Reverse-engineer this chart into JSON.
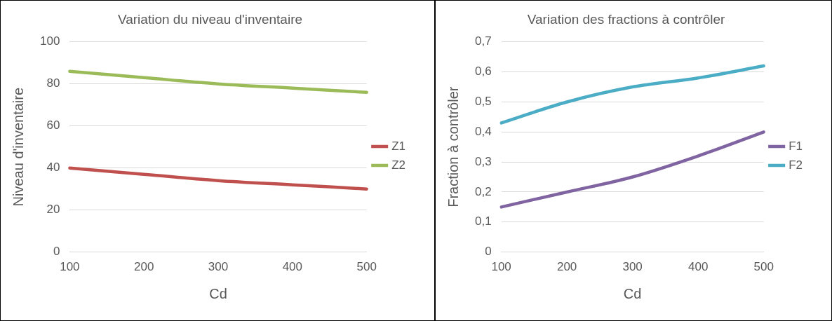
{
  "chart_data": [
    {
      "type": "line",
      "title": "Variation du niveau d'inventaire",
      "xlabel": "Cd",
      "ylabel": "Niveau d'inventaire",
      "categories": [
        "100",
        "200",
        "300",
        "400",
        "500"
      ],
      "series": [
        {
          "name": "Z1",
          "color": "#c0504d",
          "values": [
            40,
            37,
            34,
            32,
            30
          ]
        },
        {
          "name": "Z2",
          "color": "#9bbb59",
          "values": [
            86,
            83,
            80,
            78,
            76
          ]
        }
      ],
      "ylim": [
        0,
        100
      ],
      "yticks": [
        0,
        20,
        40,
        60,
        80,
        100
      ],
      "grid": "y",
      "legend": "right",
      "marker": "none",
      "line_style": "solid"
    },
    {
      "type": "line",
      "title": "Variation des fractions à contrôler",
      "xlabel": "Cd",
      "ylabel": "Fraction à contrôler",
      "categories": [
        "100",
        "200",
        "300",
        "400",
        "500"
      ],
      "series": [
        {
          "name": "F1",
          "color": "#8064a2",
          "values": [
            0.15,
            0.2,
            0.25,
            0.32,
            0.4
          ]
        },
        {
          "name": "F2",
          "color": "#4bacc6",
          "values": [
            0.43,
            0.5,
            0.55,
            0.58,
            0.62
          ]
        }
      ],
      "ylim": [
        0,
        0.7
      ],
      "yticks": [
        0,
        {
          "value": 0.1,
          "label": "0,1"
        },
        {
          "value": 0.2,
          "label": "0,2"
        },
        {
          "value": 0.3,
          "label": "0,3"
        },
        {
          "value": 0.4,
          "label": "0,4"
        },
        {
          "value": 0.5,
          "label": "0,5"
        },
        {
          "value": 0.6,
          "label": "0,6"
        },
        {
          "value": 0.7,
          "label": "0,7"
        }
      ],
      "grid": "y",
      "legend": "right",
      "marker": "none",
      "line_style": "solid"
    }
  ]
}
